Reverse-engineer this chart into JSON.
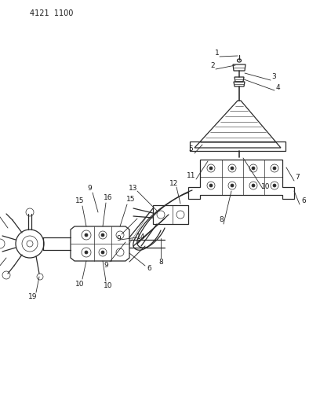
{
  "bg_color": "#ffffff",
  "fig_width": 4.08,
  "fig_height": 5.33,
  "dpi": 100,
  "part_number": "4121  1100",
  "line_color": "#2a2a2a",
  "label_color": "#1a1a1a",
  "lw_main": 0.9,
  "lw_thin": 0.5,
  "lw_leader": 0.6
}
